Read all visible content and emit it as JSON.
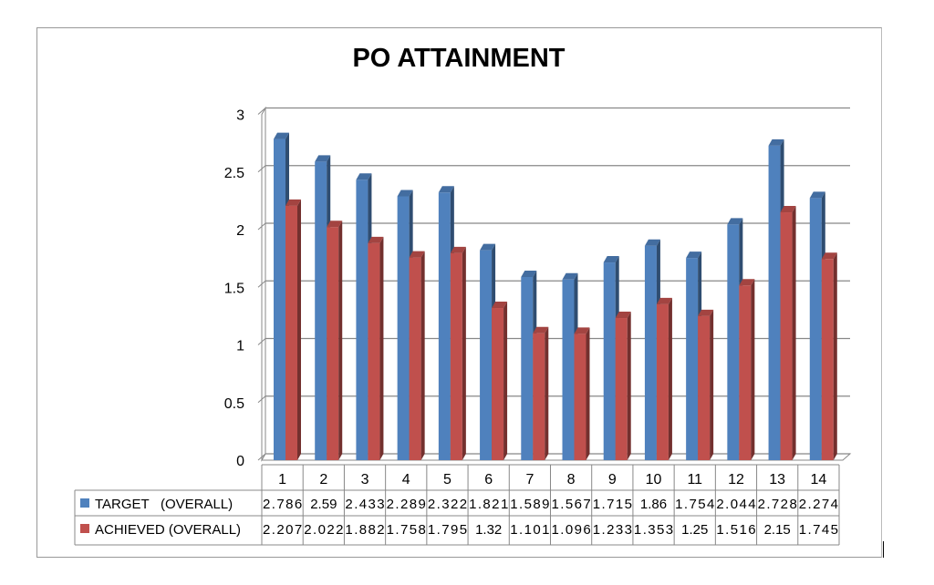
{
  "chart_data": {
    "type": "bar",
    "title": "PO ATTAINMENT",
    "categories": [
      "1",
      "2",
      "3",
      "4",
      "5",
      "6",
      "7",
      "8",
      "9",
      "10",
      "11",
      "12",
      "13",
      "14"
    ],
    "series": [
      {
        "name": "TARGET   (OVERALL)",
        "color": "#4F81BD",
        "values": [
          2.786,
          2.59,
          2.433,
          2.289,
          2.322,
          1.821,
          1.589,
          1.567,
          1.715,
          1.86,
          1.754,
          2.044,
          2.728,
          2.274
        ],
        "labels": [
          "2.786",
          "2.59",
          "2.433",
          "2.289",
          "2.322",
          "1.821",
          "1.589",
          "1.567",
          "1.715",
          "1.86",
          "1.754",
          "2.044",
          "2.728",
          "2.274"
        ]
      },
      {
        "name": "ACHIEVED (OVERALL)",
        "color": "#C0504D",
        "values": [
          2.207,
          2.022,
          1.882,
          1.758,
          1.795,
          1.32,
          1.101,
          1.096,
          1.233,
          1.353,
          1.25,
          1.516,
          2.15,
          1.745
        ],
        "labels": [
          "2.207",
          "2.022",
          "1.882",
          "1.758",
          "1.795",
          "1.32",
          "1.101",
          "1.096",
          "1.233",
          "1.353",
          "1.25",
          "1.516",
          "2.15",
          "1.745"
        ]
      }
    ],
    "yticks": [
      "0",
      "0.5",
      "1",
      "1.5",
      "2",
      "2.5",
      "3"
    ],
    "ylim": [
      0,
      3
    ],
    "grid": true,
    "legend": "data-table"
  }
}
